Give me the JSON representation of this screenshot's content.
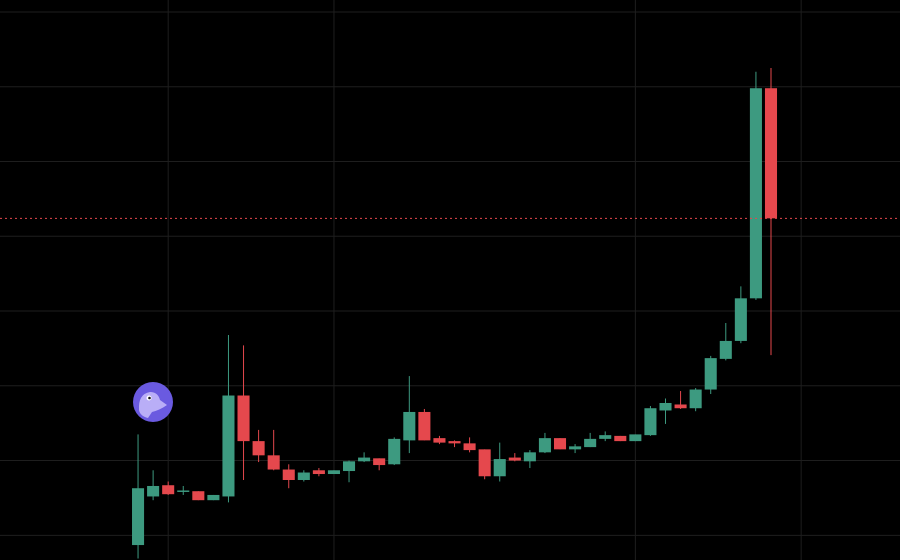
{
  "chart_data": {
    "type": "candlestick",
    "x": [
      0,
      1,
      2,
      3,
      4,
      5,
      6,
      7,
      8,
      9,
      10,
      11,
      12,
      13,
      14,
      15,
      16,
      17,
      18,
      19,
      20,
      21,
      22,
      23,
      24,
      25,
      26,
      27,
      28,
      29,
      30,
      31,
      32,
      33,
      34,
      35,
      36,
      37,
      38,
      39,
      40,
      41,
      42
    ],
    "open": [
      -0.13,
      0.52,
      0.67,
      0.58,
      0.59,
      0.47,
      0.52,
      1.87,
      1.26,
      1.07,
      0.88,
      0.74,
      0.87,
      0.82,
      0.86,
      0.99,
      1.03,
      0.95,
      1.27,
      1.65,
      1.3,
      1.26,
      1.23,
      1.15,
      0.79,
      1.04,
      0.99,
      1.11,
      1.3,
      1.15,
      1.18,
      1.29,
      1.33,
      1.26,
      1.34,
      1.67,
      1.75,
      1.7,
      1.95,
      2.36,
      2.6,
      3.17,
      5.98
    ],
    "high": [
      1.35,
      0.87,
      0.72,
      0.66,
      0.59,
      0.54,
      2.68,
      2.54,
      1.41,
      1.41,
      0.95,
      0.87,
      0.9,
      0.87,
      1.0,
      1.11,
      1.03,
      1.31,
      2.13,
      1.69,
      1.33,
      1.27,
      1.31,
      1.15,
      1.24,
      1.1,
      1.14,
      1.37,
      1.3,
      1.22,
      1.37,
      1.39,
      1.33,
      1.35,
      1.73,
      1.83,
      1.93,
      1.97,
      2.4,
      2.84,
      3.33,
      6.2,
      6.25
    ],
    "low": [
      -0.31,
      0.47,
      0.54,
      0.54,
      0.47,
      0.47,
      0.44,
      0.74,
      0.98,
      0.87,
      0.63,
      0.72,
      0.79,
      0.82,
      0.71,
      0.98,
      0.87,
      0.94,
      1.1,
      1.27,
      1.22,
      1.18,
      1.11,
      0.75,
      0.72,
      0.99,
      0.9,
      1.1,
      1.15,
      1.1,
      1.18,
      1.26,
      1.26,
      1.26,
      1.33,
      1.49,
      1.69,
      1.66,
      1.89,
      2.34,
      2.57,
      3.15,
      2.41
    ],
    "close": [
      0.63,
      0.66,
      0.55,
      0.6,
      0.47,
      0.54,
      1.87,
      1.26,
      1.07,
      0.88,
      0.74,
      0.84,
      0.82,
      0.87,
      0.99,
      1.04,
      0.94,
      1.29,
      1.65,
      1.27,
      1.24,
      1.23,
      1.14,
      0.79,
      1.02,
      1.0,
      1.11,
      1.3,
      1.15,
      1.19,
      1.29,
      1.34,
      1.26,
      1.35,
      1.7,
      1.77,
      1.7,
      1.95,
      2.37,
      2.6,
      3.17,
      5.98,
      4.24
    ],
    "up_color": "#3d9a80",
    "down_color": "#e5484d",
    "xlim": [
      -9.16,
      50.56
    ],
    "ylim": [
      -0.33,
      7.16
    ],
    "xgrid": [
      2,
      13,
      33,
      44
    ],
    "ygrid": [
      0,
      1,
      2,
      3,
      4,
      5,
      6,
      7
    ],
    "grid_color": "#1e1e1e",
    "price_line": 4.24,
    "price_line_color": "#e5484d"
  }
}
